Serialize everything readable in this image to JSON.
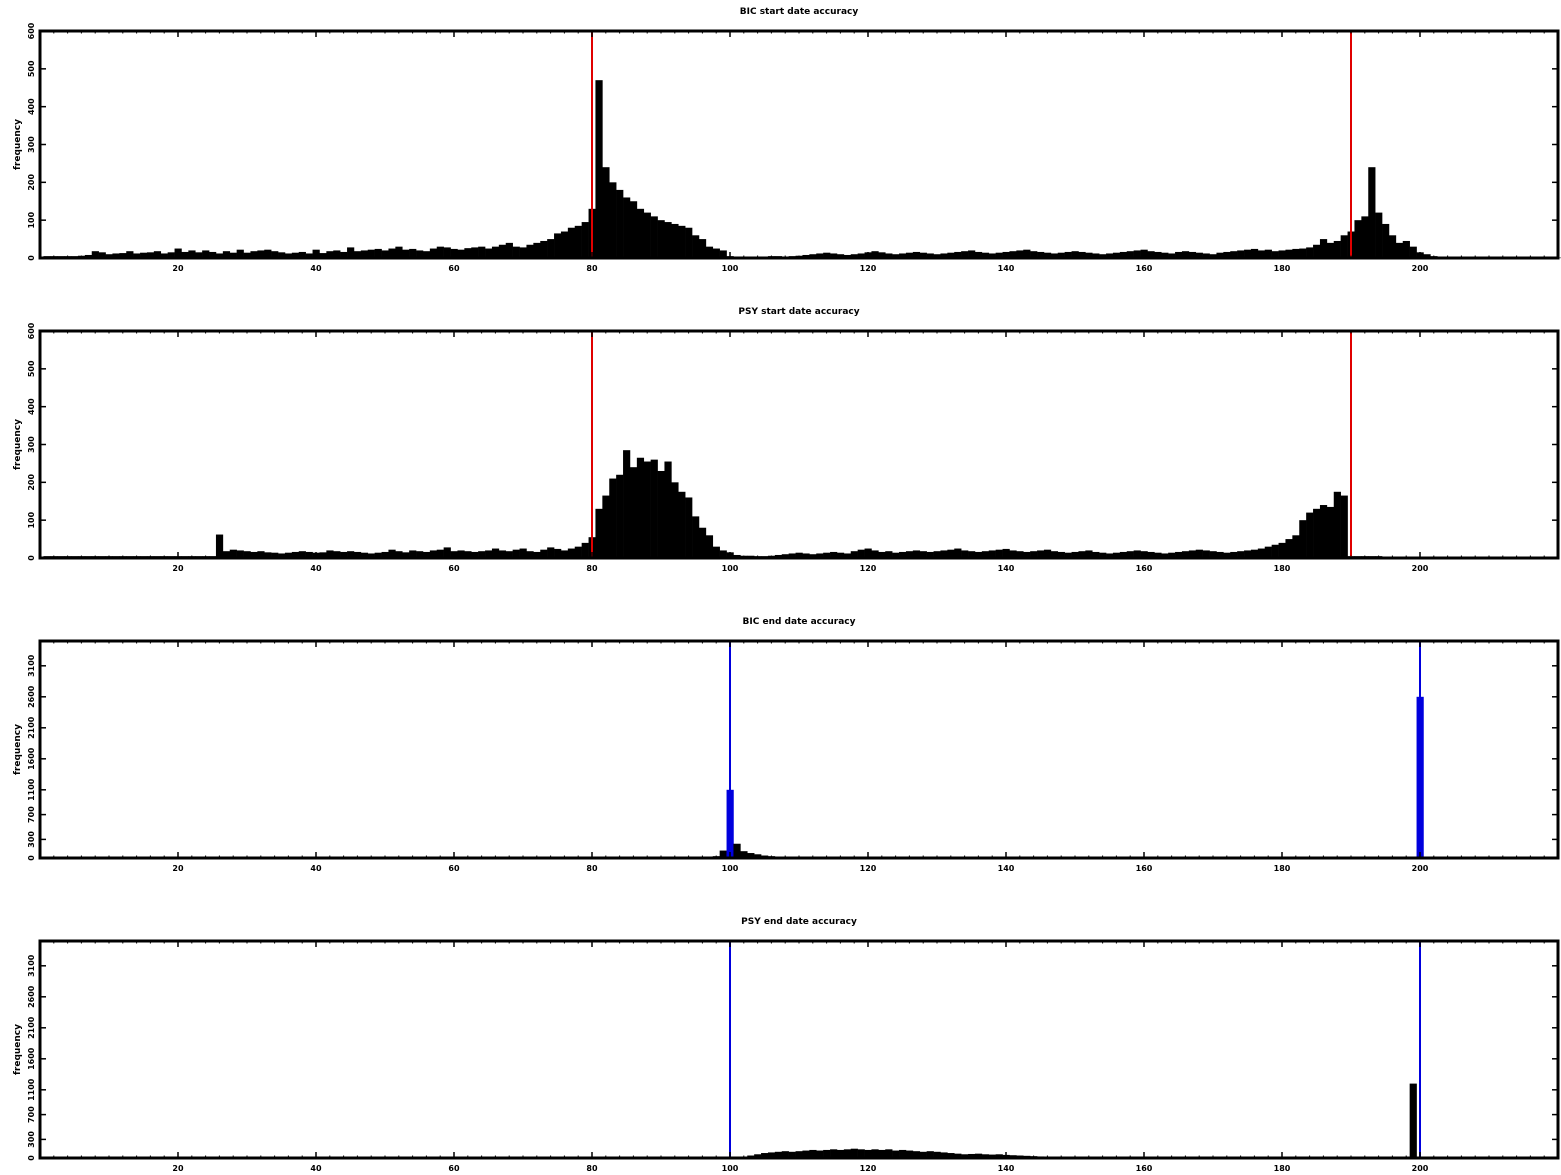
{
  "chart_data": [
    {
      "type": "bar",
      "title": "BIC start date accuracy",
      "xlabel": "",
      "ylabel": "frequency",
      "xlim": [
        0,
        220
      ],
      "ylim": [
        0,
        600
      ],
      "xticks": [
        20,
        40,
        60,
        80,
        100,
        120,
        140,
        160,
        180,
        200
      ],
      "yticks": [
        0,
        100,
        200,
        300,
        400,
        500,
        600
      ],
      "bar_color": "#000000",
      "reference_lines": [
        {
          "x": 80,
          "color": "#e00000"
        },
        {
          "x": 190,
          "color": "#e00000"
        }
      ],
      "x_start": 1,
      "values": [
        5,
        5,
        5,
        5,
        5,
        6,
        8,
        18,
        15,
        10,
        12,
        13,
        18,
        12,
        14,
        15,
        18,
        12,
        15,
        25,
        16,
        20,
        15,
        20,
        16,
        12,
        18,
        14,
        22,
        14,
        18,
        20,
        22,
        18,
        15,
        12,
        14,
        16,
        12,
        22,
        13,
        18,
        20,
        16,
        28,
        18,
        20,
        22,
        24,
        20,
        25,
        30,
        22,
        24,
        20,
        18,
        25,
        30,
        28,
        24,
        22,
        26,
        28,
        30,
        25,
        30,
        35,
        40,
        30,
        28,
        35,
        40,
        45,
        50,
        65,
        70,
        80,
        85,
        95,
        130,
        470,
        240,
        200,
        180,
        160,
        150,
        130,
        120,
        110,
        100,
        95,
        90,
        85,
        80,
        60,
        50,
        30,
        25,
        20,
        5,
        4,
        4,
        4,
        4,
        4,
        5,
        5,
        4,
        5,
        6,
        8,
        10,
        12,
        14,
        12,
        10,
        8,
        10,
        12,
        15,
        18,
        15,
        12,
        10,
        12,
        14,
        16,
        14,
        12,
        10,
        12,
        14,
        16,
        18,
        20,
        16,
        14,
        12,
        14,
        16,
        18,
        20,
        22,
        18,
        16,
        14,
        12,
        14,
        16,
        18,
        16,
        14,
        12,
        10,
        12,
        14,
        16,
        18,
        20,
        22,
        18,
        16,
        14,
        12,
        16,
        18,
        16,
        14,
        12,
        10,
        14,
        16,
        18,
        20,
        22,
        24,
        20,
        22,
        18,
        20,
        22,
        24,
        25,
        28,
        35,
        50,
        40,
        45,
        60,
        70,
        100,
        110,
        240,
        120,
        90,
        60,
        40,
        45,
        30,
        15,
        10,
        5,
        3,
        2,
        1,
        1,
        1,
        1,
        1,
        1,
        1,
        1,
        1,
        1,
        1,
        1,
        1,
        1,
        1,
        1,
        1
      ]
    },
    {
      "type": "bar",
      "title": "PSY start date accuracy",
      "xlabel": "",
      "ylabel": "frequency",
      "xlim": [
        0,
        220
      ],
      "ylim": [
        0,
        600
      ],
      "xticks": [
        20,
        40,
        60,
        80,
        100,
        120,
        140,
        160,
        180,
        200
      ],
      "yticks": [
        0,
        100,
        200,
        300,
        400,
        500,
        600
      ],
      "bar_color": "#000000",
      "reference_lines": [
        {
          "x": 80,
          "color": "#e00000"
        },
        {
          "x": 190,
          "color": "#e00000"
        }
      ],
      "x_start": 1,
      "values": [
        5,
        5,
        5,
        5,
        5,
        5,
        5,
        5,
        5,
        5,
        5,
        5,
        5,
        5,
        5,
        5,
        5,
        5,
        5,
        5,
        5,
        5,
        5,
        5,
        5,
        62,
        18,
        22,
        20,
        18,
        16,
        18,
        15,
        14,
        12,
        14,
        16,
        18,
        16,
        14,
        15,
        20,
        18,
        16,
        18,
        16,
        14,
        12,
        14,
        16,
        22,
        18,
        15,
        20,
        18,
        16,
        20,
        22,
        28,
        18,
        20,
        18,
        16,
        18,
        20,
        25,
        20,
        18,
        22,
        25,
        18,
        16,
        22,
        28,
        24,
        20,
        25,
        30,
        40,
        55,
        130,
        165,
        210,
        220,
        285,
        240,
        265,
        255,
        260,
        230,
        255,
        200,
        175,
        160,
        110,
        80,
        60,
        30,
        20,
        15,
        8,
        6,
        6,
        5,
        5,
        6,
        8,
        10,
        12,
        14,
        12,
        10,
        12,
        14,
        16,
        14,
        12,
        18,
        22,
        25,
        20,
        16,
        18,
        14,
        16,
        18,
        20,
        18,
        16,
        18,
        20,
        22,
        25,
        20,
        18,
        16,
        18,
        20,
        22,
        24,
        20,
        18,
        16,
        18,
        20,
        22,
        18,
        16,
        14,
        16,
        18,
        20,
        16,
        14,
        12,
        14,
        16,
        18,
        20,
        18,
        16,
        14,
        12,
        14,
        16,
        18,
        20,
        22,
        20,
        18,
        16,
        14,
        16,
        18,
        20,
        22,
        25,
        30,
        35,
        40,
        50,
        60,
        100,
        120,
        130,
        140,
        135,
        175,
        165,
        5,
        5,
        5,
        5,
        5,
        2,
        1,
        1,
        1,
        1,
        1,
        1,
        1,
        1,
        1,
        1,
        1,
        1,
        1,
        1,
        1,
        1,
        1,
        1,
        1,
        1,
        1
      ]
    },
    {
      "type": "bar",
      "title": "BIC end date accuracy",
      "xlabel": "",
      "ylabel": "frequency",
      "xlim": [
        0,
        220
      ],
      "ylim": [
        0,
        3500
      ],
      "xticks": [
        20,
        40,
        60,
        80,
        100,
        120,
        140,
        160,
        180,
        200
      ],
      "yticks": [
        0,
        300,
        700,
        1100,
        1600,
        2100,
        2600,
        3100
      ],
      "bar_color": "#000000",
      "reference_lines": [
        {
          "x": 100,
          "color": "#0000dd"
        },
        {
          "x": 200,
          "color": "#0000dd"
        }
      ],
      "highlight_bars": [
        {
          "x": 100,
          "color": "#0000dd"
        },
        {
          "x": 200,
          "color": "#0000dd"
        }
      ],
      "x_start": 1,
      "values": [
        10,
        10,
        10,
        10,
        10,
        10,
        10,
        10,
        10,
        10,
        10,
        10,
        10,
        10,
        10,
        10,
        10,
        10,
        10,
        10,
        10,
        10,
        10,
        10,
        10,
        10,
        10,
        10,
        10,
        10,
        10,
        10,
        10,
        10,
        10,
        10,
        10,
        10,
        10,
        10,
        10,
        10,
        10,
        10,
        10,
        10,
        10,
        10,
        10,
        10,
        10,
        10,
        10,
        10,
        10,
        10,
        10,
        10,
        10,
        10,
        10,
        10,
        10,
        10,
        10,
        10,
        10,
        10,
        10,
        10,
        10,
        10,
        10,
        10,
        10,
        10,
        10,
        10,
        10,
        10,
        10,
        10,
        10,
        10,
        10,
        10,
        10,
        10,
        10,
        10,
        10,
        10,
        10,
        10,
        10,
        10,
        10,
        30,
        120,
        1100,
        230,
        110,
        80,
        60,
        40,
        30,
        20,
        15,
        10,
        10,
        10,
        10,
        10,
        10,
        10,
        10,
        10,
        10,
        10,
        10,
        10,
        10,
        10,
        10,
        10,
        10,
        10,
        10,
        10,
        10,
        10,
        10,
        10,
        10,
        10,
        10,
        10,
        10,
        10,
        10,
        10,
        10,
        10,
        10,
        10,
        10,
        10,
        10,
        10,
        10,
        10,
        10,
        10,
        10,
        10,
        10,
        10,
        10,
        10,
        10,
        10,
        10,
        10,
        10,
        10,
        10,
        10,
        10,
        10,
        10,
        10,
        10,
        10,
        10,
        10,
        10,
        10,
        10,
        10,
        10,
        10,
        10,
        10,
        10,
        10,
        10,
        10,
        10,
        10,
        10,
        10,
        10,
        10,
        10,
        10,
        10,
        10,
        10,
        10,
        2600,
        0,
        0,
        0,
        0,
        0,
        0,
        0,
        0,
        0,
        0,
        0,
        0,
        0,
        0,
        0,
        0,
        0,
        0,
        0,
        0
      ]
    },
    {
      "type": "bar",
      "title": "PSY end date accuracy",
      "xlabel": "",
      "ylabel": "frequency",
      "xlim": [
        0,
        220
      ],
      "ylim": [
        0,
        3500
      ],
      "xticks": [
        20,
        40,
        60,
        80,
        100,
        120,
        140,
        160,
        180,
        200
      ],
      "yticks": [
        0,
        300,
        700,
        1100,
        1600,
        2100,
        2600,
        3100
      ],
      "bar_color": "#000000",
      "reference_lines": [
        {
          "x": 100,
          "color": "#0000dd"
        },
        {
          "x": 200,
          "color": "#0000dd"
        }
      ],
      "highlight_bars": [
        {
          "x": 200,
          "color": "#0000dd"
        }
      ],
      "x_start": 1,
      "values": [
        5,
        5,
        5,
        5,
        5,
        5,
        5,
        5,
        5,
        5,
        5,
        5,
        5,
        5,
        5,
        5,
        5,
        5,
        5,
        5,
        5,
        5,
        5,
        5,
        5,
        5,
        5,
        5,
        5,
        5,
        5,
        5,
        5,
        5,
        5,
        5,
        5,
        5,
        5,
        5,
        5,
        5,
        5,
        5,
        5,
        5,
        5,
        5,
        5,
        5,
        5,
        5,
        5,
        5,
        5,
        5,
        5,
        5,
        5,
        5,
        5,
        5,
        5,
        5,
        5,
        5,
        5,
        5,
        5,
        5,
        5,
        5,
        5,
        5,
        5,
        5,
        5,
        5,
        5,
        5,
        5,
        5,
        5,
        5,
        5,
        5,
        5,
        5,
        5,
        5,
        5,
        5,
        5,
        5,
        5,
        5,
        5,
        5,
        5,
        5,
        10,
        20,
        40,
        60,
        80,
        90,
        100,
        110,
        100,
        110,
        120,
        130,
        120,
        130,
        140,
        130,
        140,
        150,
        140,
        130,
        140,
        130,
        140,
        120,
        130,
        120,
        110,
        100,
        110,
        100,
        90,
        80,
        70,
        60,
        65,
        70,
        60,
        55,
        60,
        50,
        45,
        40,
        35,
        30,
        25,
        20,
        15,
        10,
        8,
        6,
        5,
        5,
        5,
        5,
        5,
        5,
        5,
        5,
        5,
        5,
        5,
        5,
        5,
        5,
        5,
        5,
        5,
        5,
        5,
        5,
        5,
        5,
        5,
        5,
        5,
        5,
        5,
        5,
        5,
        5,
        5,
        5,
        5,
        5,
        5,
        5,
        5,
        5,
        5,
        5,
        5,
        5,
        5,
        5,
        5,
        5,
        5,
        5,
        1200,
        0,
        0,
        0,
        0,
        0,
        0,
        0,
        0,
        0,
        0,
        0,
        0,
        0,
        0,
        0,
        0,
        0,
        0,
        0,
        0,
        0,
        0
      ]
    }
  ]
}
